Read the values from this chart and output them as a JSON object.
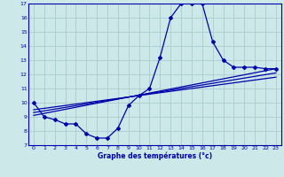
{
  "xlabel": "Graphe des températures (°c)",
  "bg_color": "#cce8e8",
  "grid_color": "#aacccc",
  "line_color": "#0000aa",
  "xlim": [
    -0.5,
    23.5
  ],
  "ylim": [
    7,
    17
  ],
  "yticks": [
    7,
    8,
    9,
    10,
    11,
    12,
    13,
    14,
    15,
    16,
    17
  ],
  "xticks": [
    0,
    1,
    2,
    3,
    4,
    5,
    6,
    7,
    8,
    9,
    10,
    11,
    12,
    13,
    14,
    15,
    16,
    17,
    18,
    19,
    20,
    21,
    22,
    23
  ],
  "line1_x": [
    0,
    1,
    2,
    3,
    4,
    5,
    6,
    7,
    8,
    9,
    10,
    11,
    12,
    13,
    14,
    15,
    16,
    17,
    18,
    19,
    20,
    21,
    22,
    23
  ],
  "line1_y": [
    10.0,
    9.0,
    8.8,
    8.5,
    8.5,
    7.8,
    7.5,
    7.5,
    8.2,
    9.8,
    10.5,
    11.0,
    13.2,
    16.0,
    17.0,
    17.0,
    17.0,
    14.3,
    13.0,
    12.5,
    12.5,
    12.5,
    12.4,
    12.4
  ],
  "line2_x": [
    0,
    23
  ],
  "line2_y": [
    9.1,
    12.4
  ],
  "line3_x": [
    0,
    23
  ],
  "line3_y": [
    9.3,
    12.1
  ],
  "line4_x": [
    0,
    23
  ],
  "line4_y": [
    9.5,
    11.8
  ]
}
